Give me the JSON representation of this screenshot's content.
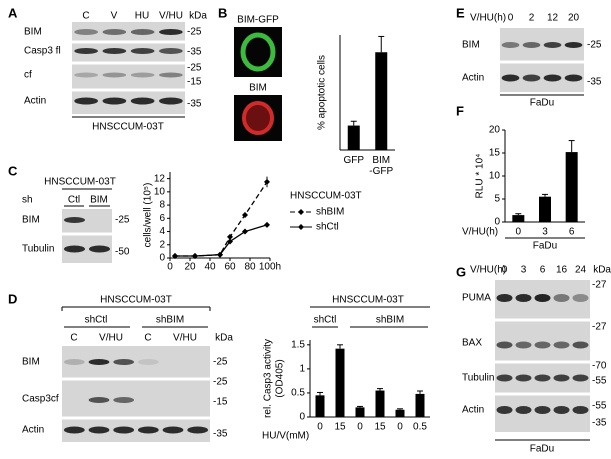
{
  "panels": {
    "A": {
      "label": "A",
      "lanes": [
        "C",
        "V",
        "HU",
        "V/HU"
      ],
      "unit": "kDa",
      "rows": [
        "BIM",
        "Casp3 fl",
        "cf",
        "Actin"
      ],
      "markers": [
        "-25",
        "-35",
        "-25",
        "-15",
        "-35"
      ],
      "cell_line": "HNSCCUM-03T"
    },
    "B": {
      "label": "B",
      "images": [
        "BIM-GFP",
        "BIM"
      ]
    },
    "C": {
      "label": "C",
      "cell_line": "HNSCCUM-03T",
      "sh_label": "sh",
      "lanes": [
        "Ctl",
        "BIM"
      ],
      "rows": [
        "BIM",
        "Tubulin"
      ],
      "markers": [
        "-25",
        "-50"
      ]
    },
    "D": {
      "label": "D",
      "cell_line": "HNSCCUM-03T",
      "groups": [
        "shCtl",
        "shBIM"
      ],
      "lanes": [
        "C",
        "V/HU",
        "C",
        "V/HU"
      ],
      "unit": "kDa",
      "rows": [
        "BIM",
        "Casp3cf",
        "Actin"
      ],
      "markers": [
        "-25",
        "-25",
        "-15",
        "-35"
      ]
    },
    "E": {
      "label": "E",
      "time_label": "V/HU(h)",
      "lanes": [
        "0",
        "2",
        "12",
        "20"
      ],
      "rows": [
        "BIM",
        "Actin"
      ],
      "markers": [
        "-25",
        "-35"
      ],
      "cell_line": "FaDu"
    },
    "F": {
      "label": "F"
    },
    "G": {
      "label": "G",
      "time_label": "V/HU(h)",
      "lanes": [
        "0",
        "3",
        "6",
        "16",
        "24"
      ],
      "unit": "kDa",
      "rows": [
        "PUMA",
        "BAX",
        "Tubulin",
        "Actin"
      ],
      "markers": [
        "-27",
        "-27",
        "-70",
        "-55",
        "-55",
        "-35"
      ],
      "cell_line": "FaDu"
    }
  },
  "chart_data": [
    {
      "type": "bar",
      "y_label": "% apoptotic cells",
      "categories": [
        "GFP",
        "BIM -GFP"
      ],
      "values": [
        8.5,
        34
      ],
      "errors": [
        1.5,
        5.5
      ],
      "color": "#000000",
      "ylim": [
        0,
        40
      ]
    },
    {
      "type": "line",
      "y_label": "cells/well (10⁵)",
      "x": [
        5,
        25,
        50,
        60,
        75,
        97
      ],
      "xlim": [
        0,
        100
      ],
      "xticks": [
        0,
        20,
        40,
        60,
        80,
        {
          "value": 100,
          "label": "100h"
        }
      ],
      "ylim": [
        0,
        13
      ],
      "yticks": [
        0,
        2,
        4,
        6,
        8,
        10,
        12
      ],
      "legend_title": "HNSCCUM-03T",
      "series": [
        {
          "name": "shBIM",
          "color": "#000000",
          "dashed": true,
          "values": [
            0.3,
            0.3,
            0.5,
            3.2,
            6.5,
            11.5
          ],
          "errors": [
            0.1,
            0.1,
            0.2,
            0.3,
            0.4,
            0.8
          ]
        },
        {
          "name": "shCtl",
          "color": "#000000",
          "dashed": false,
          "values": [
            0.3,
            0.3,
            0.5,
            2.5,
            4,
            5
          ],
          "errors": [
            0.1,
            0.1,
            0.2,
            0.3,
            0.3,
            0.3
          ]
        }
      ]
    },
    {
      "type": "bar",
      "title": "HNSCCUM-03T",
      "groups": [
        "shCtl",
        "shBIM"
      ],
      "y_label": [
        "rel. Casp3 activity",
        "(OD405)"
      ],
      "x_label": "HU/V(mM)",
      "categories": [
        "0",
        "15",
        "0",
        "15",
        "0",
        "0.5"
      ],
      "values": [
        0.45,
        1.42,
        0.2,
        0.55,
        0.15,
        0.48
      ],
      "errors": [
        0.06,
        0.08,
        0.02,
        0.04,
        0.02,
        0.06
      ],
      "color": "#000000",
      "ylim": [
        0,
        1.6
      ],
      "yticks": [
        0,
        0.5,
        1,
        1.5
      ]
    },
    {
      "type": "bar",
      "y_label": "RLU * 10⁴",
      "x_label": "V/HU(h)",
      "categories": [
        "0",
        "3",
        "6"
      ],
      "values": [
        1.5,
        5.5,
        15.2
      ],
      "errors": [
        0.3,
        0.5,
        2.5
      ],
      "color": "#000000",
      "ylim": [
        0,
        20
      ],
      "yticks": [
        0,
        5,
        10,
        15,
        20
      ],
      "caption": "FaDu"
    }
  ]
}
